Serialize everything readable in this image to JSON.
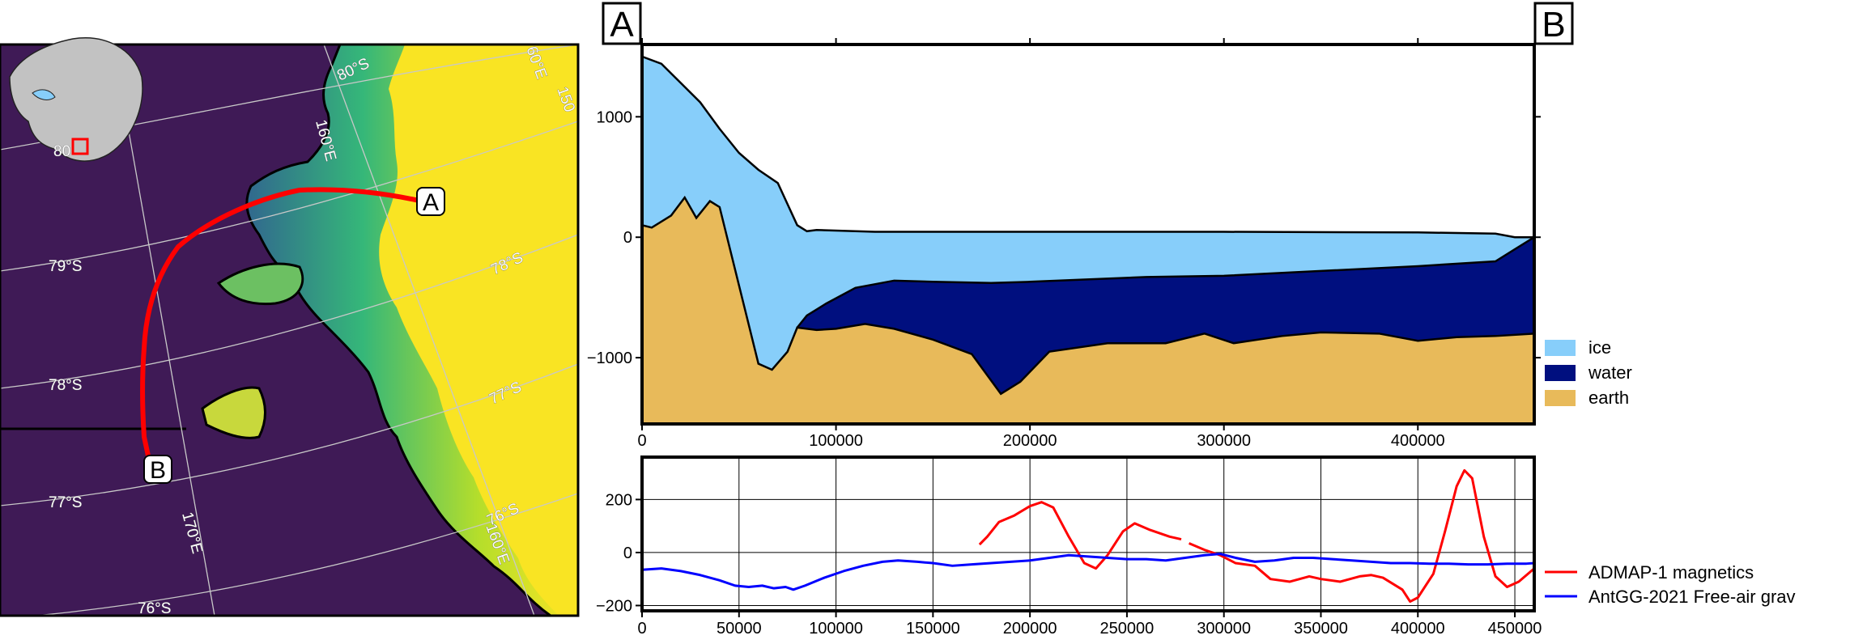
{
  "map": {
    "graticule_labels": [
      "80°S",
      "79°S",
      "78°S",
      "77°S",
      "76°S",
      "78°S",
      "77°S",
      "76°S",
      "160°E",
      "170°E",
      "160°E",
      "60°E",
      "150"
    ],
    "inset_label": "80",
    "marker_a": "A",
    "marker_b": "B",
    "colors": {
      "ocean": "#3f1a56",
      "land_high": "#f9e423",
      "land_mid": "#35b779",
      "land_low": "#31688e",
      "profile_line": "#ff0000"
    }
  },
  "chart_data": [
    {
      "type": "area",
      "start_label": "A",
      "end_label": "B",
      "xlim": [
        0,
        460000
      ],
      "ylim": [
        -1550,
        1600
      ],
      "x_ticks": [
        0,
        100000,
        200000,
        300000,
        400000
      ],
      "y_ticks": [
        1000,
        0,
        -1000
      ],
      "y_tick_labels": [
        "1000",
        "0",
        "−1000"
      ],
      "x_tick_labels": [
        "0",
        "100000",
        "200000",
        "300000",
        "400000"
      ],
      "legend_position": "right",
      "series": [
        {
          "name": "ice",
          "color": "#87cefa",
          "top": [
            [
              0,
              1500
            ],
            [
              10000,
              1440
            ],
            [
              20000,
              1280
            ],
            [
              30000,
              1120
            ],
            [
              40000,
              900
            ],
            [
              50000,
              700
            ],
            [
              60000,
              560
            ],
            [
              70000,
              450
            ],
            [
              80000,
              100
            ],
            [
              85000,
              50
            ],
            [
              90000,
              60
            ],
            [
              120000,
              45
            ],
            [
              200000,
              45
            ],
            [
              300000,
              45
            ],
            [
              400000,
              40
            ],
            [
              440000,
              30
            ],
            [
              450000,
              0
            ],
            [
              460000,
              0
            ]
          ],
          "bottom": [
            [
              0,
              100
            ],
            [
              5000,
              80
            ],
            [
              15000,
              180
            ],
            [
              22000,
              330
            ],
            [
              28000,
              160
            ],
            [
              35000,
              300
            ],
            [
              40000,
              250
            ],
            [
              50000,
              -400
            ],
            [
              60000,
              -1050
            ],
            [
              67000,
              -1100
            ],
            [
              75000,
              -950
            ],
            [
              80000,
              -750
            ],
            [
              85000,
              -650
            ],
            [
              95000,
              -550
            ],
            [
              110000,
              -420
            ],
            [
              130000,
              -360
            ],
            [
              150000,
              -370
            ],
            [
              180000,
              -380
            ],
            [
              200000,
              -370
            ],
            [
              260000,
              -330
            ],
            [
              300000,
              -320
            ],
            [
              350000,
              -280
            ],
            [
              400000,
              -240
            ],
            [
              440000,
              -200
            ],
            [
              450000,
              -100
            ],
            [
              460000,
              0
            ]
          ]
        },
        {
          "name": "water",
          "color": "#000f7f",
          "top": [
            [
              80000,
              -750
            ],
            [
              85000,
              -650
            ],
            [
              95000,
              -550
            ],
            [
              110000,
              -420
            ],
            [
              130000,
              -360
            ],
            [
              150000,
              -370
            ],
            [
              180000,
              -380
            ],
            [
              200000,
              -370
            ],
            [
              260000,
              -330
            ],
            [
              300000,
              -320
            ],
            [
              350000,
              -280
            ],
            [
              400000,
              -240
            ],
            [
              440000,
              -200
            ],
            [
              450000,
              -100
            ],
            [
              460000,
              0
            ]
          ],
          "bottom": [
            [
              80000,
              -750
            ],
            [
              90000,
              -770
            ],
            [
              100000,
              -760
            ],
            [
              115000,
              -720
            ],
            [
              130000,
              -760
            ],
            [
              150000,
              -850
            ],
            [
              170000,
              -970
            ],
            [
              185000,
              -1300
            ],
            [
              195000,
              -1200
            ],
            [
              210000,
              -950
            ],
            [
              240000,
              -880
            ],
            [
              270000,
              -880
            ],
            [
              290000,
              -800
            ],
            [
              305000,
              -880
            ],
            [
              330000,
              -820
            ],
            [
              350000,
              -790
            ],
            [
              380000,
              -800
            ],
            [
              400000,
              -860
            ],
            [
              420000,
              -830
            ],
            [
              440000,
              -820
            ],
            [
              460000,
              -800
            ]
          ]
        },
        {
          "name": "earth",
          "color": "#e8ba5a",
          "top": [
            [
              0,
              100
            ],
            [
              5000,
              80
            ],
            [
              15000,
              180
            ],
            [
              22000,
              330
            ],
            [
              28000,
              160
            ],
            [
              35000,
              300
            ],
            [
              40000,
              250
            ],
            [
              50000,
              -400
            ],
            [
              60000,
              -1050
            ],
            [
              67000,
              -1100
            ],
            [
              75000,
              -950
            ],
            [
              80000,
              -750
            ],
            [
              90000,
              -770
            ],
            [
              100000,
              -760
            ],
            [
              115000,
              -720
            ],
            [
              130000,
              -760
            ],
            [
              150000,
              -850
            ],
            [
              170000,
              -970
            ],
            [
              185000,
              -1300
            ],
            [
              195000,
              -1200
            ],
            [
              210000,
              -950
            ],
            [
              240000,
              -880
            ],
            [
              270000,
              -880
            ],
            [
              290000,
              -800
            ],
            [
              305000,
              -880
            ],
            [
              330000,
              -820
            ],
            [
              350000,
              -790
            ],
            [
              380000,
              -800
            ],
            [
              400000,
              -860
            ],
            [
              420000,
              -830
            ],
            [
              440000,
              -820
            ],
            [
              460000,
              -800
            ]
          ]
        }
      ]
    },
    {
      "type": "line",
      "xlim": [
        0,
        460000
      ],
      "ylim": [
        -220,
        360
      ],
      "x_ticks": [
        0,
        50000,
        100000,
        150000,
        200000,
        250000,
        300000,
        350000,
        400000,
        450000
      ],
      "x_tick_labels": [
        "0",
        "50000",
        "100000",
        "150000",
        "200000",
        "250000",
        "300000",
        "350000",
        "400000",
        "450000"
      ],
      "y_ticks": [
        200,
        0,
        -200
      ],
      "y_tick_labels": [
        "200",
        "0",
        "−200"
      ],
      "grid": true,
      "legend_position": "right",
      "series": [
        {
          "name": "ADMAP-1 magnetics",
          "color": "#ff0000",
          "segments": [
            [
              [
                174000,
                30
              ],
              [
                178000,
                60
              ],
              [
                184000,
                115
              ],
              [
                192000,
                140
              ],
              [
                200000,
                175
              ],
              [
                206000,
                190
              ],
              [
                212000,
                170
              ],
              [
                220000,
                60
              ],
              [
                228000,
                -40
              ],
              [
                234000,
                -60
              ],
              [
                240000,
                -10
              ],
              [
                248000,
                80
              ],
              [
                254000,
                110
              ],
              [
                262000,
                85
              ],
              [
                272000,
                60
              ],
              [
                278000,
                50
              ]
            ],
            [
              [
                282000,
                35
              ],
              [
                290000,
                10
              ],
              [
                298000,
                -10
              ],
              [
                306000,
                -40
              ],
              [
                316000,
                -50
              ],
              [
                324000,
                -100
              ],
              [
                334000,
                -110
              ],
              [
                344000,
                -90
              ],
              [
                350000,
                -100
              ],
              [
                360000,
                -110
              ],
              [
                370000,
                -90
              ],
              [
                376000,
                -85
              ],
              [
                382000,
                -95
              ],
              [
                392000,
                -140
              ],
              [
                396000,
                -185
              ],
              [
                400000,
                -170
              ],
              [
                408000,
                -80
              ],
              [
                414000,
                80
              ],
              [
                420000,
                250
              ],
              [
                424000,
                310
              ],
              [
                428000,
                280
              ],
              [
                434000,
                60
              ],
              [
                440000,
                -90
              ],
              [
                446000,
                -130
              ],
              [
                452000,
                -110
              ],
              [
                460000,
                -60
              ]
            ]
          ]
        },
        {
          "name": "AntGG-2021 Free-air grav",
          "color": "#0000ff",
          "segments": [
            [
              [
                0,
                -65
              ],
              [
                10000,
                -60
              ],
              [
                20000,
                -70
              ],
              [
                30000,
                -85
              ],
              [
                40000,
                -105
              ],
              [
                48000,
                -125
              ],
              [
                55000,
                -130
              ],
              [
                62000,
                -125
              ],
              [
                68000,
                -135
              ],
              [
                74000,
                -130
              ],
              [
                78000,
                -140
              ],
              [
                84000,
                -125
              ],
              [
                94000,
                -95
              ],
              [
                104000,
                -70
              ],
              [
                114000,
                -50
              ],
              [
                124000,
                -35
              ],
              [
                132000,
                -30
              ],
              [
                142000,
                -35
              ],
              [
                150000,
                -40
              ],
              [
                160000,
                -50
              ],
              [
                170000,
                -45
              ],
              [
                180000,
                -40
              ],
              [
                190000,
                -35
              ],
              [
                200000,
                -30
              ],
              [
                210000,
                -20
              ],
              [
                220000,
                -10
              ],
              [
                230000,
                -15
              ],
              [
                240000,
                -20
              ],
              [
                250000,
                -25
              ],
              [
                260000,
                -25
              ],
              [
                270000,
                -30
              ],
              [
                280000,
                -20
              ],
              [
                290000,
                -10
              ],
              [
                298000,
                -5
              ],
              [
                306000,
                -20
              ],
              [
                316000,
                -35
              ],
              [
                326000,
                -30
              ],
              [
                336000,
                -20
              ],
              [
                346000,
                -20
              ],
              [
                356000,
                -25
              ],
              [
                366000,
                -30
              ],
              [
                376000,
                -35
              ],
              [
                386000,
                -40
              ],
              [
                396000,
                -40
              ],
              [
                406000,
                -42
              ],
              [
                416000,
                -42
              ],
              [
                426000,
                -45
              ],
              [
                436000,
                -45
              ],
              [
                446000,
                -42
              ],
              [
                456000,
                -42
              ],
              [
                460000,
                -40
              ]
            ]
          ]
        }
      ]
    }
  ]
}
